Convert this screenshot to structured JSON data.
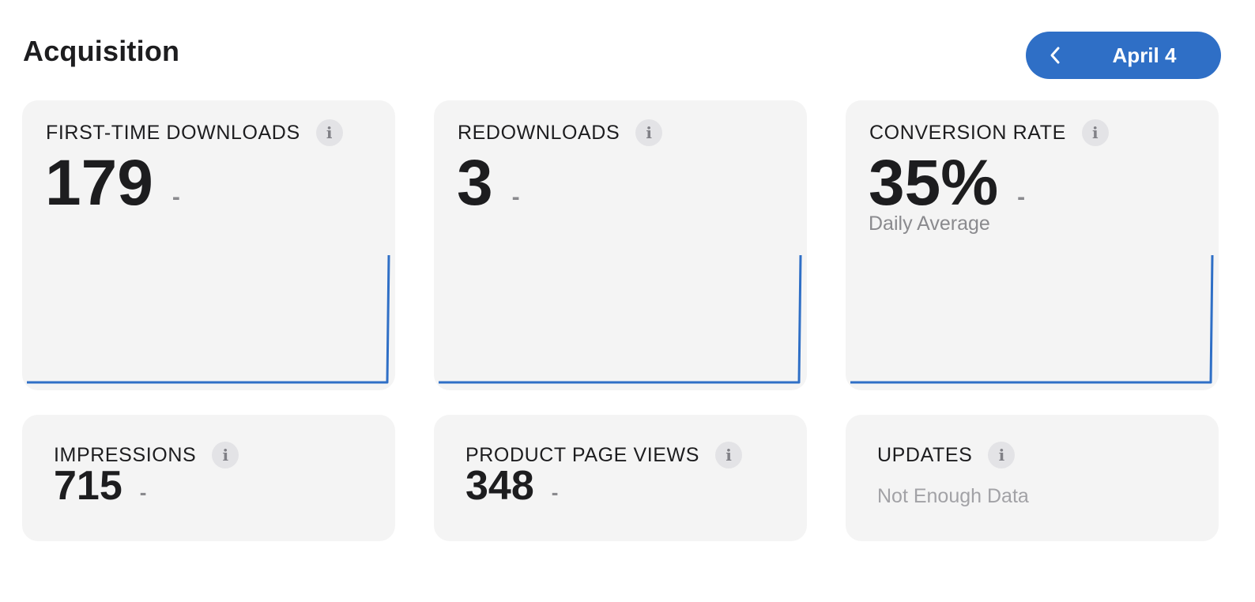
{
  "header": {
    "title": "Acquisition",
    "date_label": "April 4"
  },
  "accent_color": "#2f6fc6",
  "cards": {
    "first_time_downloads": {
      "title": "FIRST-TIME DOWNLOADS",
      "value": "179",
      "delta": "-"
    },
    "redownloads": {
      "title": "REDOWNLOADS",
      "value": "3",
      "delta": "-"
    },
    "conversion_rate": {
      "title": "CONVERSION RATE",
      "value": "35%",
      "delta": "-",
      "subtext": "Daily Average"
    },
    "impressions": {
      "title": "IMPRESSIONS",
      "value": "715",
      "delta": "-"
    },
    "product_page_views": {
      "title": "PRODUCT PAGE VIEWS",
      "value": "348",
      "delta": "-"
    },
    "updates": {
      "title": "UPDATES",
      "empty_text": "Not Enough Data"
    }
  },
  "icons": {
    "info": "info-icon",
    "back": "chevron-left-icon"
  }
}
